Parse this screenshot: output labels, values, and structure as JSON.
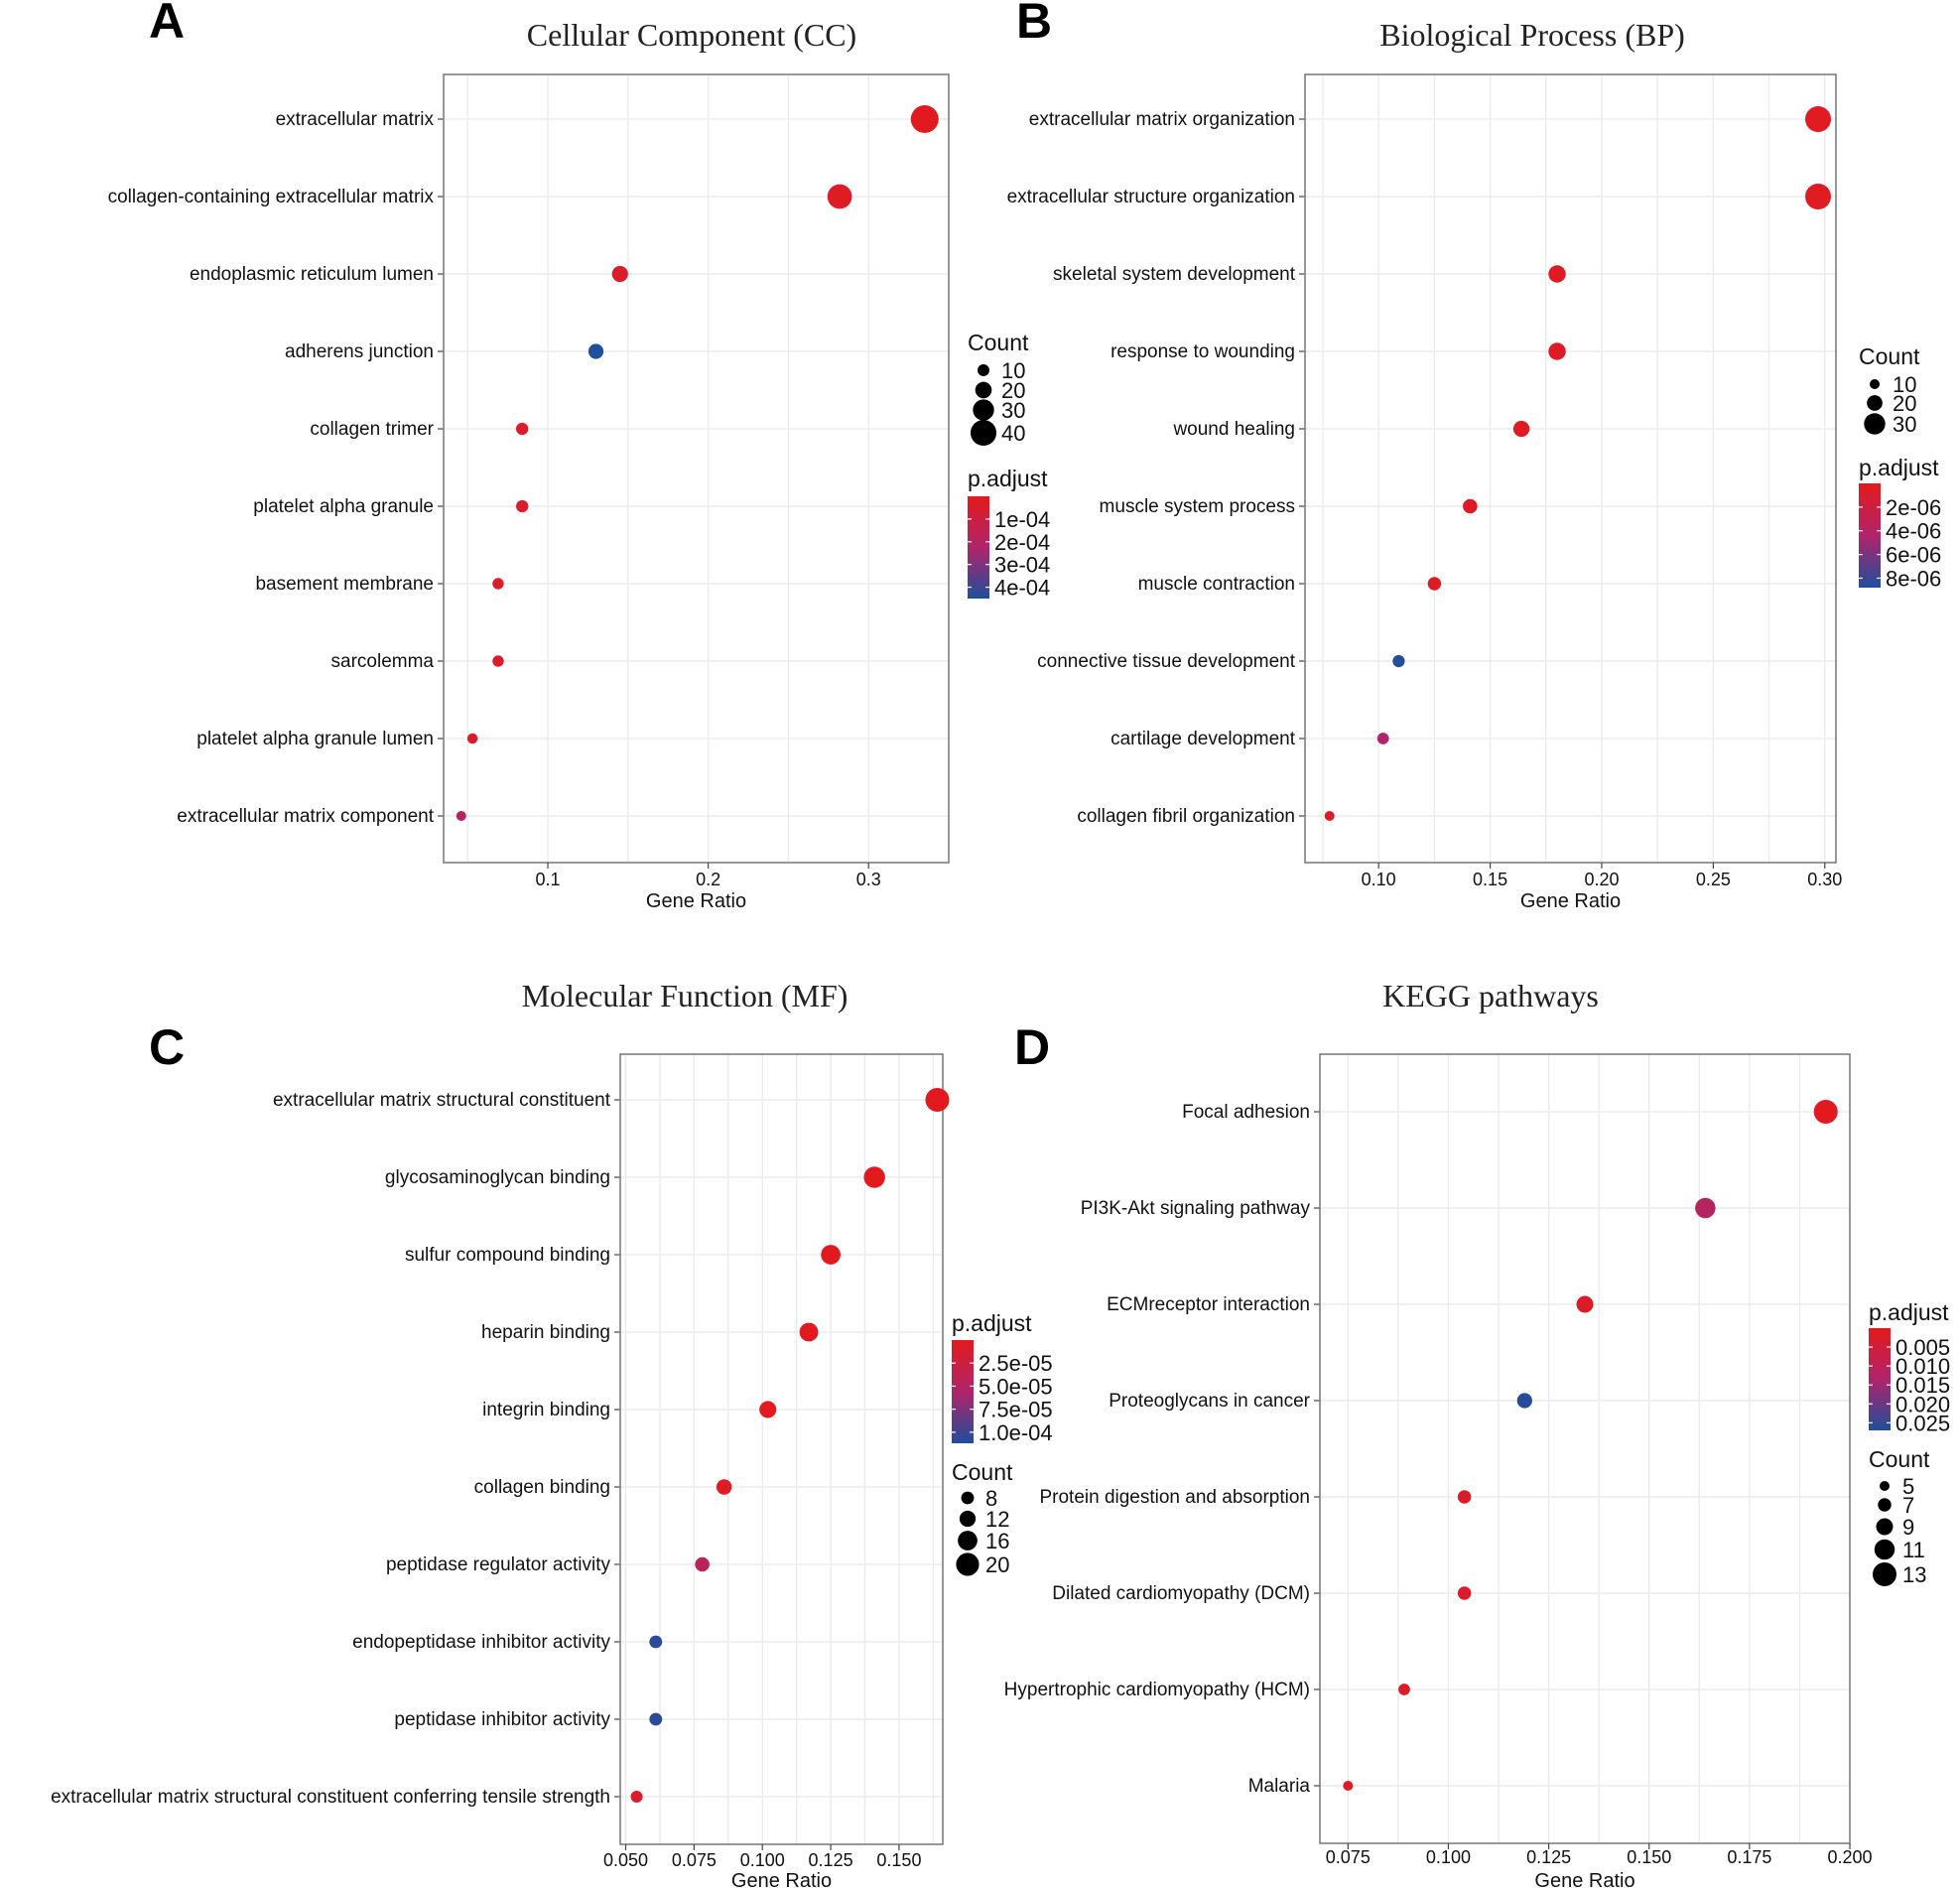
{
  "colors": {
    "high": "#e41a1c",
    "mid": "#b0246a",
    "low": "#1f4e9c",
    "grid": "#ebebeb",
    "frame": "#7f7f7f"
  },
  "chart_data": [
    {
      "panel": "A",
      "type": "scatter",
      "title": "Cellular Component (CC)",
      "xlabel": "Gene Ratio",
      "xlim": [
        0.035,
        0.35
      ],
      "xticks": [
        0.1,
        0.2,
        0.3
      ],
      "xtick_labels": [
        "0.1",
        "0.2",
        "0.3"
      ],
      "categories": [
        "extracellular matrix",
        "collagen-containing extracellular matrix",
        "endoplasmic reticulum lumen",
        "adherens junction",
        "collagen trimer",
        "platelet alpha granule",
        "basement membrane",
        "sarcolemma",
        "platelet alpha granule lumen",
        "extracellular matrix component"
      ],
      "gene_ratio": [
        0.335,
        0.282,
        0.145,
        0.13,
        0.084,
        0.084,
        0.069,
        0.069,
        0.053,
        0.046
      ],
      "count": [
        44,
        37,
        19,
        17,
        11,
        11,
        9,
        9,
        7,
        6
      ],
      "p_adjust": [
        1e-05,
        2e-05,
        4e-05,
        0.00045,
        4e-05,
        4e-05,
        4e-05,
        4e-05,
        4e-05,
        0.0002
      ],
      "size_legend": {
        "title": "Count",
        "values": [
          10,
          20,
          30,
          40
        ],
        "labels": [
          "10",
          "20",
          "30",
          "40"
        ]
      },
      "color_legend": {
        "title": "p.adjust",
        "min": 0.0,
        "max": 0.00045,
        "ticks": [
          0.0001,
          0.0002,
          0.0003,
          0.0004
        ],
        "labels": [
          "1e-04",
          "2e-04",
          "3e-04",
          "4e-04"
        ]
      },
      "legend_order": [
        "size",
        "color"
      ]
    },
    {
      "panel": "B",
      "type": "scatter",
      "title": "Biological Process (BP)",
      "xlabel": "Gene Ratio",
      "xlim": [
        0.067,
        0.305
      ],
      "xticks": [
        0.1,
        0.15,
        0.2,
        0.25,
        0.3
      ],
      "xtick_labels": [
        "0.10",
        "0.15",
        "0.20",
        "0.25",
        "0.30"
      ],
      "categories": [
        "extracellular matrix organization",
        "extracellular structure organization",
        "skeletal system development",
        "response to wounding",
        "wound healing",
        "muscle system process",
        "muscle contraction",
        "connective tissue development",
        "cartilage development",
        "collagen fibril organization"
      ],
      "gene_ratio": [
        0.297,
        0.297,
        0.18,
        0.18,
        0.164,
        0.141,
        0.125,
        0.109,
        0.102,
        0.078
      ],
      "count": [
        38,
        38,
        23,
        23,
        21,
        18,
        16,
        14,
        13,
        10
      ],
      "p_adjust": [
        3e-07,
        3e-07,
        5e-07,
        5e-07,
        5e-07,
        5e-07,
        5e-07,
        8.6e-06,
        4.5e-06,
        6e-07
      ],
      "size_legend": {
        "title": "Count",
        "values": [
          10,
          20,
          30
        ],
        "labels": [
          "10",
          "20",
          "30"
        ]
      },
      "color_legend": {
        "title": "p.adjust",
        "min": 0.0,
        "max": 8.8e-06,
        "ticks": [
          2e-06,
          4e-06,
          6e-06,
          8e-06
        ],
        "labels": [
          "2e-06",
          "4e-06",
          "6e-06",
          "8e-06"
        ]
      },
      "legend_order": [
        "size",
        "color"
      ]
    },
    {
      "panel": "C",
      "type": "scatter",
      "title": "Molecular Function (MF)",
      "xlabel": "Gene Ratio",
      "xlim": [
        0.048,
        0.166
      ],
      "xticks": [
        0.05,
        0.075,
        0.1,
        0.125,
        0.15
      ],
      "xtick_labels": [
        "0.050",
        "0.075",
        "0.100",
        "0.125",
        "0.150"
      ],
      "categories": [
        "extracellular matrix structural constituent",
        "glycosaminoglycan binding",
        "sulfur compound binding",
        "heparin binding",
        "integrin binding",
        "collagen binding",
        "peptidase regulator activity",
        "endopeptidase inhibitor activity",
        "peptidase inhibitor activity",
        "extracellular matrix structural constituent conferring tensile strength"
      ],
      "gene_ratio": [
        0.164,
        0.141,
        0.125,
        0.117,
        0.102,
        0.086,
        0.078,
        0.061,
        0.061,
        0.054
      ],
      "count": [
        21,
        18,
        16,
        15,
        13,
        11,
        10,
        8,
        8,
        7
      ],
      "p_adjust": [
        1e-06,
        2e-06,
        2e-06,
        2e-06,
        3e-06,
        5e-06,
        4.5e-05,
        0.000108,
        0.000108,
        1e-05
      ],
      "size_legend": {
        "title": "Count",
        "values": [
          8,
          12,
          16,
          20
        ],
        "labels": [
          "8",
          "12",
          "16",
          "20"
        ]
      },
      "color_legend": {
        "title": "p.adjust",
        "min": 0.0,
        "max": 0.000112,
        "ticks": [
          2.5e-05,
          5e-05,
          7.5e-05,
          0.0001
        ],
        "labels": [
          "2.5e-05",
          "5.0e-05",
          "7.5e-05",
          "1.0e-04"
        ]
      },
      "legend_order": [
        "color",
        "size"
      ]
    },
    {
      "panel": "D",
      "type": "scatter",
      "title": "KEGG pathways",
      "xlabel": "Gene Ratio",
      "xlim": [
        0.068,
        0.2
      ],
      "xticks": [
        0.075,
        0.1,
        0.125,
        0.15,
        0.175,
        0.2
      ],
      "xtick_labels": [
        "0.075",
        "0.100",
        "0.125",
        "0.150",
        "0.175",
        "0.200"
      ],
      "categories": [
        "Focal adhesion",
        "PI3K-Akt signaling pathway",
        "ECMreceptor interaction",
        "Proteoglycans in cancer",
        "Protein digestion and absorption",
        "Dilated cardiomyopathy (DCM)",
        "Hypertrophic cardiomyopathy (HCM)",
        "Malaria"
      ],
      "gene_ratio": [
        0.194,
        0.164,
        0.134,
        0.119,
        0.104,
        0.104,
        0.089,
        0.075
      ],
      "count": [
        13,
        11,
        9,
        8,
        7,
        7,
        6,
        5
      ],
      "p_adjust": [
        0.0005,
        0.012,
        0.002,
        0.0265,
        0.002,
        0.002,
        0.002,
        0.002
      ],
      "size_legend": {
        "title": "Count",
        "values": [
          5,
          7,
          9,
          11,
          13
        ],
        "labels": [
          "5",
          "7",
          "9",
          "11",
          "13"
        ]
      },
      "color_legend": {
        "title": "p.adjust",
        "min": 0.0,
        "max": 0.027,
        "ticks": [
          0.005,
          0.01,
          0.015,
          0.02,
          0.025
        ],
        "labels": [
          "0.005",
          "0.010",
          "0.015",
          "0.020",
          "0.025"
        ]
      },
      "legend_order": [
        "color",
        "size"
      ]
    }
  ]
}
